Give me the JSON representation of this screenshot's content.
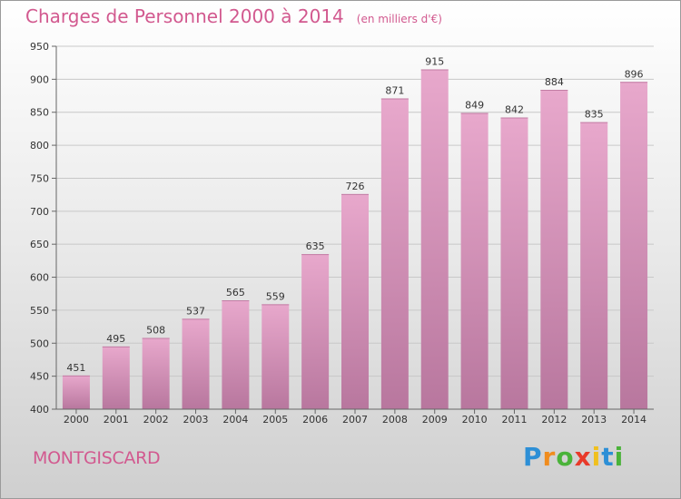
{
  "title": "Charges de Personnel 2000 à 2014",
  "subtitle": "(en milliers d'€)",
  "town": "MONTGISCARD",
  "logo": {
    "letters": [
      "P",
      "r",
      "o",
      "x",
      "i",
      "t",
      "i"
    ],
    "colors": [
      "#2d8fd6",
      "#f08c1e",
      "#4ab33a",
      "#e83a2a",
      "#f0c01e",
      "#2d8fd6",
      "#4ab33a"
    ]
  },
  "colors": {
    "bar_top": "#e8a8cc",
    "bar_bottom": "#b8779e",
    "accent": "#d2598f"
  },
  "chart_data": {
    "type": "bar",
    "title": "Charges de Personnel 2000 à 2014",
    "subtitle": "(en milliers d'€)",
    "categories": [
      "2000",
      "2001",
      "2002",
      "2003",
      "2004",
      "2005",
      "2006",
      "2007",
      "2008",
      "2009",
      "2010",
      "2011",
      "2012",
      "2013",
      "2014"
    ],
    "values": [
      451,
      495,
      508,
      537,
      565,
      559,
      635,
      726,
      871,
      915,
      849,
      842,
      884,
      835,
      896
    ],
    "ylim": [
      400,
      950
    ],
    "yticks": [
      400,
      450,
      500,
      550,
      600,
      650,
      700,
      750,
      800,
      850,
      900,
      950
    ],
    "grid": true
  }
}
